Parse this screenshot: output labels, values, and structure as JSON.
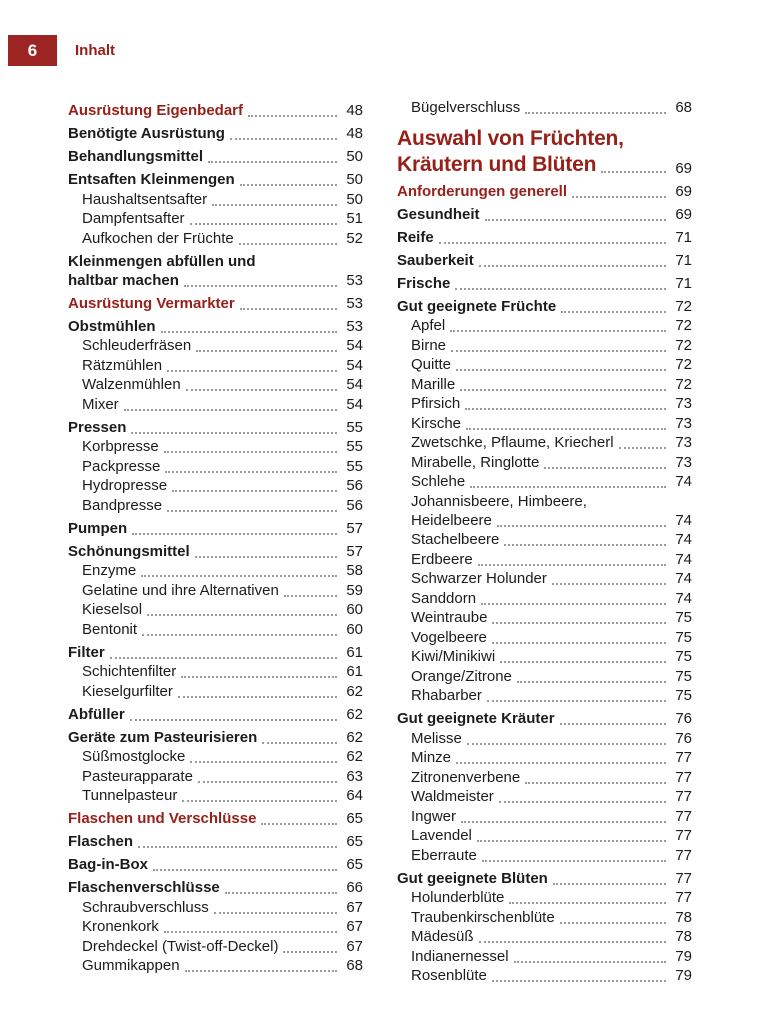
{
  "header": {
    "page_number": "6",
    "title": "Inhalt"
  },
  "colors": {
    "accent": "#97211a",
    "box": "#9c2523",
    "text": "#1c1c1c",
    "leader": "#9a9a9a"
  },
  "toc": {
    "left": [
      {
        "label": "Ausrüstung Eigenbedarf",
        "page": "48",
        "style": "section"
      },
      {
        "label": "Benötigte Ausrüstung",
        "page": "48",
        "style": "bold"
      },
      {
        "label": "Behandlungsmittel",
        "page": "50",
        "style": "bold"
      },
      {
        "label": "Entsaften Kleinmengen",
        "page": "50",
        "style": "bold"
      },
      {
        "label": "Haushaltsentsafter",
        "page": "50",
        "style": "sub"
      },
      {
        "label": "Dampfentsafter",
        "page": "51",
        "style": "sub"
      },
      {
        "label": "Aufkochen der Früchte",
        "page": "52",
        "style": "sub"
      },
      {
        "label": "Kleinmengen abfüllen und",
        "label2": "haltbar machen",
        "page": "53",
        "style": "bold"
      },
      {
        "label": "Ausrüstung Vermarkter",
        "page": "53",
        "style": "section"
      },
      {
        "label": "Obstmühlen",
        "page": "53",
        "style": "bold"
      },
      {
        "label": "Schleuderfräsen",
        "page": "54",
        "style": "sub"
      },
      {
        "label": "Rätzmühlen",
        "page": "54",
        "style": "sub"
      },
      {
        "label": "Walzenmühlen",
        "page": "54",
        "style": "sub"
      },
      {
        "label": "Mixer",
        "page": "54",
        "style": "sub"
      },
      {
        "label": "Pressen",
        "page": "55",
        "style": "bold"
      },
      {
        "label": "Korbpresse",
        "page": "55",
        "style": "sub"
      },
      {
        "label": "Packpresse",
        "page": "55",
        "style": "sub"
      },
      {
        "label": "Hydropresse",
        "page": "56",
        "style": "sub"
      },
      {
        "label": "Bandpresse",
        "page": "56",
        "style": "sub"
      },
      {
        "label": "Pumpen",
        "page": "57",
        "style": "bold"
      },
      {
        "label": "Schönungsmittel",
        "page": "57",
        "style": "bold"
      },
      {
        "label": "Enzyme",
        "page": "58",
        "style": "sub"
      },
      {
        "label": "Gelatine und ihre Alternativen",
        "page": "59",
        "style": "sub"
      },
      {
        "label": "Kieselsol",
        "page": "60",
        "style": "sub"
      },
      {
        "label": "Bentonit",
        "page": "60",
        "style": "sub"
      },
      {
        "label": "Filter",
        "page": "61",
        "style": "bold"
      },
      {
        "label": "Schichtenfilter",
        "page": "61",
        "style": "sub"
      },
      {
        "label": "Kieselgurfilter",
        "page": "62",
        "style": "sub"
      },
      {
        "label": "Abfüller",
        "page": "62",
        "style": "bold"
      },
      {
        "label": "Geräte zum Pasteurisieren",
        "page": "62",
        "style": "bold"
      },
      {
        "label": "Süßmostglocke",
        "page": "62",
        "style": "sub"
      },
      {
        "label": "Pasteurapparate",
        "page": "63",
        "style": "sub"
      },
      {
        "label": "Tunnelpasteur",
        "page": "64",
        "style": "sub"
      },
      {
        "label": "Flaschen und Verschlüsse",
        "page": "65",
        "style": "section"
      },
      {
        "label": "Flaschen",
        "page": "65",
        "style": "bold"
      },
      {
        "label": "Bag-in-Box",
        "page": "65",
        "style": "bold"
      },
      {
        "label": "Flaschenverschlüsse",
        "page": "66",
        "style": "bold"
      },
      {
        "label": "Schraubverschluss",
        "page": "67",
        "style": "sub"
      },
      {
        "label": "Kronenkork",
        "page": "67",
        "style": "sub"
      },
      {
        "label": "Drehdeckel (Twist-off-Deckel)",
        "page": "67",
        "style": "sub"
      },
      {
        "label": "Gummikappen",
        "page": "68",
        "style": "sub"
      }
    ],
    "right": [
      {
        "label": "Bügelverschluss",
        "page": "68",
        "style": "sub"
      },
      {
        "label": "Auswahl von Früchten,",
        "label2": "Kräutern und Blüten",
        "page": "69",
        "style": "title"
      },
      {
        "label": "Anforderungen generell",
        "page": "69",
        "style": "section"
      },
      {
        "label": "Gesundheit",
        "page": "69",
        "style": "bold"
      },
      {
        "label": "Reife",
        "page": "71",
        "style": "bold"
      },
      {
        "label": "Sauberkeit",
        "page": "71",
        "style": "bold"
      },
      {
        "label": "Frische",
        "page": "71",
        "style": "bold"
      },
      {
        "label": "Gut geeignete Früchte",
        "page": "72",
        "style": "bold"
      },
      {
        "label": "Apfel",
        "page": "72",
        "style": "sub"
      },
      {
        "label": "Birne",
        "page": "72",
        "style": "sub"
      },
      {
        "label": "Quitte",
        "page": "72",
        "style": "sub"
      },
      {
        "label": "Marille",
        "page": "72",
        "style": "sub"
      },
      {
        "label": "Pfirsich",
        "page": "73",
        "style": "sub"
      },
      {
        "label": "Kirsche",
        "page": "73",
        "style": "sub"
      },
      {
        "label": "Zwetschke, Pflaume, Kriecherl",
        "page": "73",
        "style": "sub"
      },
      {
        "label": "Mirabelle, Ringlotte",
        "page": "73",
        "style": "sub"
      },
      {
        "label": "Schlehe",
        "page": "74",
        "style": "sub"
      },
      {
        "label": "Johannisbeere, Himbeere,",
        "label2": "Heidelbeere",
        "page": "74",
        "style": "sub"
      },
      {
        "label": "Stachelbeere",
        "page": "74",
        "style": "sub"
      },
      {
        "label": "Erdbeere",
        "page": "74",
        "style": "sub"
      },
      {
        "label": "Schwarzer Holunder",
        "page": "74",
        "style": "sub"
      },
      {
        "label": "Sanddorn",
        "page": "74",
        "style": "sub"
      },
      {
        "label": "Weintraube",
        "page": "75",
        "style": "sub"
      },
      {
        "label": "Vogelbeere",
        "page": "75",
        "style": "sub"
      },
      {
        "label": "Kiwi/Minikiwi",
        "page": "75",
        "style": "sub"
      },
      {
        "label": "Orange/Zitrone",
        "page": "75",
        "style": "sub"
      },
      {
        "label": "Rhabarber",
        "page": "75",
        "style": "sub"
      },
      {
        "label": "Gut geeignete Kräuter",
        "page": "76",
        "style": "bold"
      },
      {
        "label": "Melisse",
        "page": "76",
        "style": "sub"
      },
      {
        "label": "Minze",
        "page": "77",
        "style": "sub"
      },
      {
        "label": "Zitronenverbene",
        "page": "77",
        "style": "sub"
      },
      {
        "label": "Waldmeister",
        "page": "77",
        "style": "sub"
      },
      {
        "label": "Ingwer",
        "page": "77",
        "style": "sub"
      },
      {
        "label": "Lavendel",
        "page": "77",
        "style": "sub"
      },
      {
        "label": "Eberraute",
        "page": "77",
        "style": "sub"
      },
      {
        "label": "Gut geeignete Blüten",
        "page": "77",
        "style": "bold"
      },
      {
        "label": "Holunderblüte",
        "page": "77",
        "style": "sub"
      },
      {
        "label": "Traubenkirschenblüte",
        "page": "78",
        "style": "sub"
      },
      {
        "label": "Mädesüß",
        "page": "78",
        "style": "sub"
      },
      {
        "label": "Indianernessel",
        "page": "79",
        "style": "sub"
      },
      {
        "label": "Rosenblüte",
        "page": "79",
        "style": "sub"
      }
    ]
  }
}
